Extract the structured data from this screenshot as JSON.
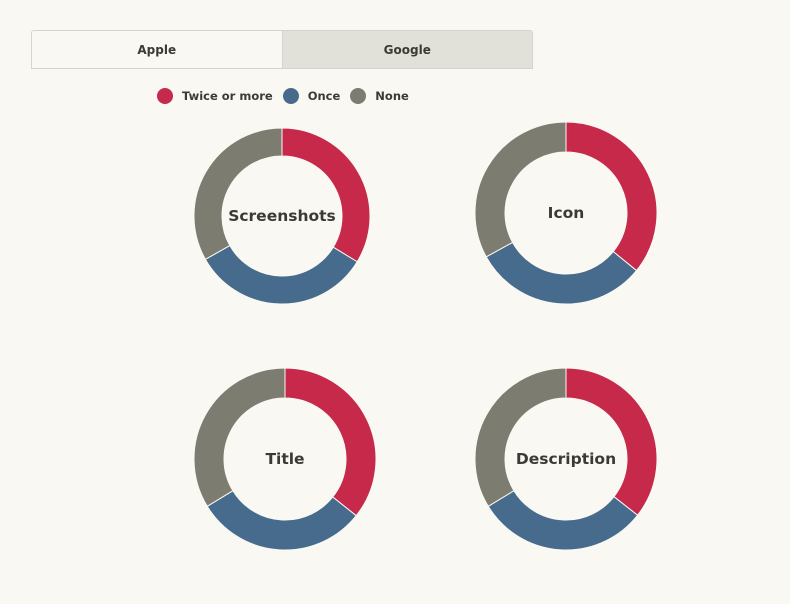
{
  "tabs": [
    {
      "label": "Apple",
      "active": true
    },
    {
      "label": "Google",
      "active": false
    }
  ],
  "colors": {
    "twice": "#c6294a",
    "once": "#476b8c",
    "none": "#7d7c70"
  },
  "legend": [
    {
      "label": "Twice or more",
      "color": "#c6294a"
    },
    {
      "label": "Once",
      "color": "#476b8c"
    },
    {
      "label": "None",
      "color": "#7d7c70"
    }
  ],
  "chart_data": [
    {
      "type": "pie",
      "title": "Screenshots",
      "categories": [
        "Twice or more",
        "Once",
        "None"
      ],
      "values": [
        33.7,
        33.1,
        33.2
      ]
    },
    {
      "type": "pie",
      "title": "Icon",
      "categories": [
        "Twice or more",
        "Once",
        "None"
      ],
      "values": [
        35.9,
        31.1,
        33.0
      ]
    },
    {
      "type": "pie",
      "title": "Title",
      "categories": [
        "Twice or more",
        "Once",
        "None"
      ],
      "values": [
        35.7,
        30.6,
        33.7
      ]
    },
    {
      "type": "pie",
      "title": "Description",
      "categories": [
        "Twice or more",
        "Once",
        "None"
      ],
      "values": [
        35.6,
        30.7,
        33.7
      ]
    }
  ]
}
